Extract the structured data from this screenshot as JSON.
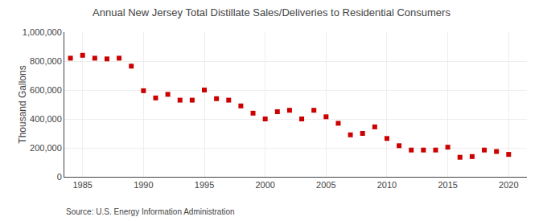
{
  "chart_data": {
    "type": "scatter",
    "title": "Annual New Jersey Total Distillate Sales/Deliveries to Residential Consumers",
    "ylabel": "Thousand Gallons",
    "annotations": [
      "Source: U.S. Energy Information Administration"
    ],
    "x": [
      1984,
      1985,
      1986,
      1987,
      1988,
      1989,
      1990,
      1991,
      1992,
      1993,
      1994,
      1995,
      1996,
      1997,
      1998,
      1999,
      2000,
      2001,
      2002,
      2003,
      2004,
      2005,
      2006,
      2007,
      2008,
      2009,
      2010,
      2011,
      2012,
      2013,
      2014,
      2015,
      2016,
      2017,
      2018,
      2019,
      2020
    ],
    "values": [
      820000,
      840000,
      820000,
      815000,
      820000,
      765000,
      595000,
      545000,
      570000,
      530000,
      530000,
      600000,
      540000,
      530000,
      490000,
      440000,
      400000,
      450000,
      460000,
      400000,
      460000,
      415000,
      370000,
      290000,
      300000,
      345000,
      265000,
      215000,
      185000,
      185000,
      185000,
      205000,
      135000,
      140000,
      185000,
      175000,
      155000
    ],
    "color": "#cc0000",
    "marker": "square",
    "xlim": [
      1983.5,
      2021.5
    ],
    "xticks": [
      1985,
      1990,
      1995,
      2000,
      2005,
      2010,
      2015,
      2020
    ],
    "ylim": [
      0,
      1000000
    ],
    "yticks": [
      0,
      {
        "value": 200000,
        "label": "200,000"
      },
      {
        "value": 400000,
        "label": "400,000"
      },
      {
        "value": 600000,
        "label": "600,000"
      },
      {
        "value": 800000,
        "label": "800,000"
      },
      {
        "value": 1000000,
        "label": "1,000,000"
      }
    ],
    "grid": true
  }
}
